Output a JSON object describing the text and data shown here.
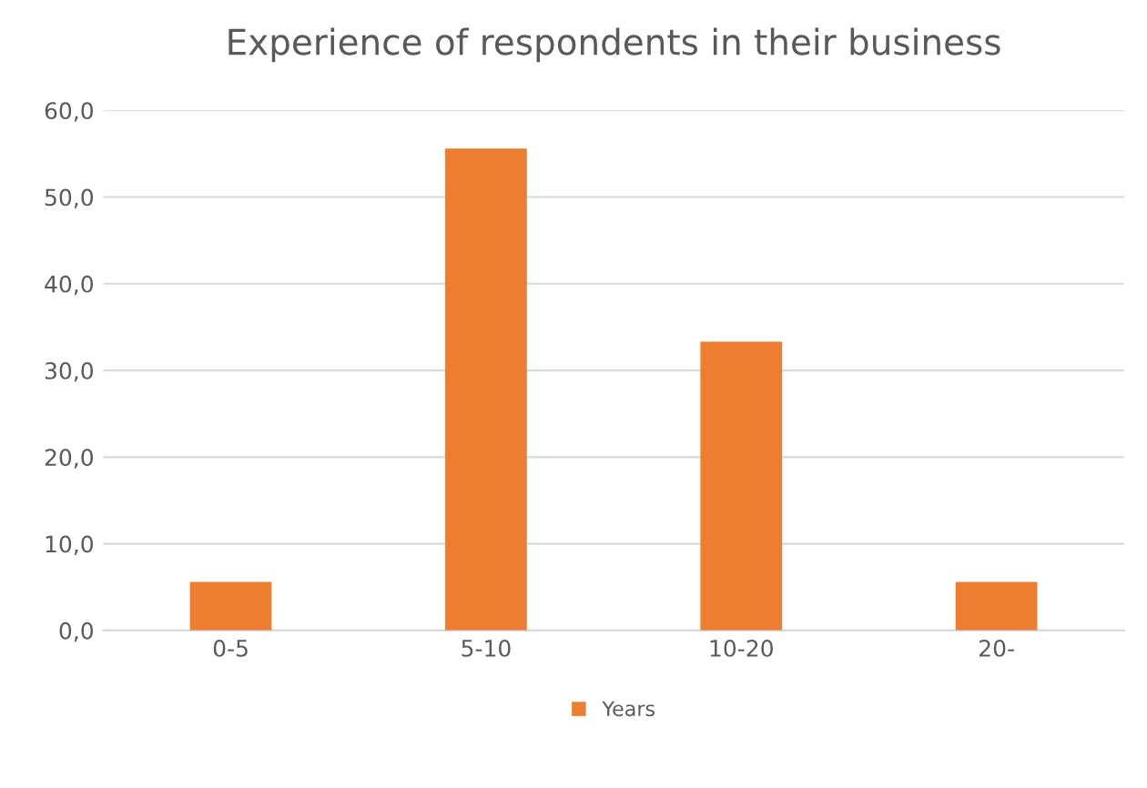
{
  "chart_data": {
    "type": "bar",
    "title": "Experience of respondents in their business",
    "categories": [
      "0-5",
      "5-10",
      "10-20",
      "20-"
    ],
    "series": [
      {
        "name": "Years",
        "color": "#ed7d31",
        "values": [
          5.6,
          55.6,
          33.3,
          5.6
        ]
      }
    ],
    "ylim": [
      0,
      60
    ],
    "yticks": [
      {
        "value": 0,
        "label": "0,0"
      },
      {
        "value": 10,
        "label": "10,0"
      },
      {
        "value": 20,
        "label": "20,0"
      },
      {
        "value": 30,
        "label": "30,0"
      },
      {
        "value": 40,
        "label": "40,0"
      },
      {
        "value": 50,
        "label": "50,0"
      },
      {
        "value": 60,
        "label": "60,0"
      }
    ],
    "grid": "y",
    "legend": "bottom"
  }
}
